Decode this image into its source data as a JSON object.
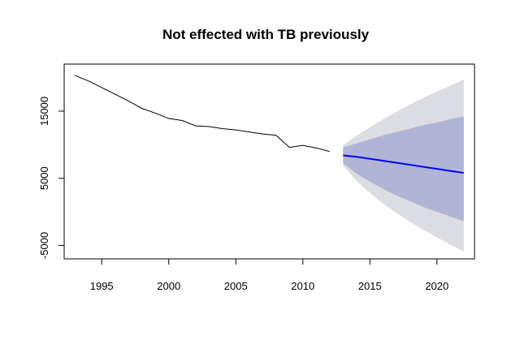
{
  "chart_data": {
    "type": "line",
    "title": "Not effected with TB previously",
    "xlabel": "",
    "ylabel": "",
    "xlim": [
      1992.2,
      2022.8
    ],
    "ylim": [
      -7000,
      22000
    ],
    "x_ticks": [
      "1995",
      "2000",
      "2005",
      "2010",
      "2015",
      "2020"
    ],
    "y_ticks": [
      "-5000",
      "5000",
      "15000"
    ],
    "grid": false,
    "colors": {
      "observed": "#000000",
      "forecast": "#0000ff",
      "band80": "#b1b5d5",
      "band95": "#dcdce3"
    },
    "observed": {
      "x": [
        1993,
        1994,
        1995,
        1996,
        1997,
        1998,
        1999,
        2000,
        2001,
        2002,
        2003,
        2004,
        2005,
        2006,
        2007,
        2008,
        2009,
        2010,
        2011,
        2012
      ],
      "y": [
        20300,
        19500,
        18500,
        17500,
        16500,
        15400,
        14700,
        13900,
        13600,
        12800,
        12700,
        12400,
        12200,
        11900,
        11600,
        11400,
        9600,
        9900,
        9500,
        9000
      ]
    },
    "forecast": {
      "x": [
        2013,
        2014,
        2015,
        2016,
        2017,
        2018,
        2019,
        2020,
        2021,
        2022
      ],
      "mean": [
        8400,
        8200,
        7900,
        7600,
        7300,
        7000,
        6700,
        6400,
        6100,
        5800
      ],
      "lo80": [
        7200,
        5700,
        4500,
        3400,
        2400,
        1600,
        700,
        0,
        -700,
        -1400
      ],
      "hi80": [
        9600,
        10200,
        10800,
        11400,
        11900,
        12400,
        12900,
        13300,
        13800,
        14200
      ],
      "lo95": [
        6900,
        4600,
        2800,
        1200,
        -200,
        -1500,
        -2700,
        -3800,
        -4900,
        -5900
      ],
      "hi95": [
        9900,
        11300,
        12600,
        13800,
        14900,
        16000,
        17000,
        17900,
        18800,
        19700
      ]
    }
  }
}
